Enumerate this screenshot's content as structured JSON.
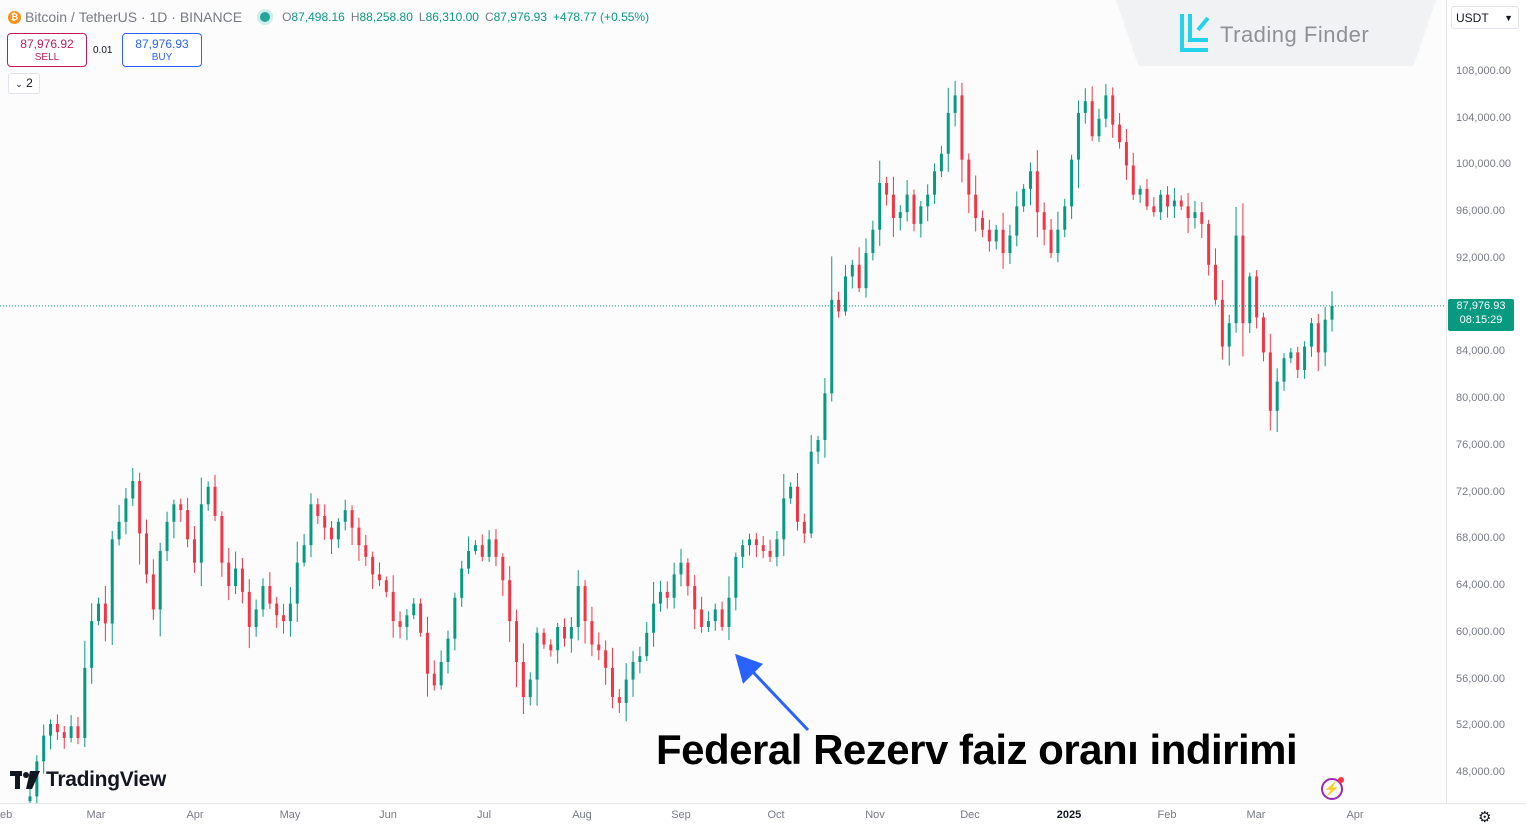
{
  "legend": {
    "symbol": "Bitcoin",
    "separator": "/",
    "quote": "TetherUS",
    "interval": "· 1D ·",
    "exchange": "BINANCE",
    "o_label": "O",
    "o_value": "87,498.16",
    "h_label": "H",
    "h_value": "88,258.80",
    "l_label": "L",
    "l_value": "86,310.00",
    "c_label": "C",
    "c_value": "87,976.93",
    "change": "+478.77 (+0.55%)"
  },
  "trade": {
    "sell_price": "87,976.92",
    "sell_label": "SELL",
    "spread": "0.01",
    "buy_price": "87,976.93",
    "buy_label": "BUY"
  },
  "indicators_toggle": "2",
  "watermark": "Trading Finder",
  "currency_select": "USDT",
  "branding": "TradingView",
  "annotation": "Federal Rezerv faiz oranı indirimi",
  "last_price": {
    "price": "87,976.93",
    "countdown": "08:15:29"
  },
  "colors": {
    "up": "#089981",
    "down": "#f23645",
    "arrow": "#2962ff",
    "last_price": "#089981"
  },
  "chart_data": {
    "type": "candlestick",
    "symbol": "BTCUSDT",
    "interval": "1D",
    "y_axis": {
      "ticks": [
        48000,
        52000,
        56000,
        60000,
        64000,
        68000,
        72000,
        76000,
        80000,
        84000,
        92000,
        96000,
        100000,
        104000,
        108000
      ],
      "tick_labels": [
        "48,000.00",
        "52,000.00",
        "56,000.00",
        "60,000.00",
        "64,000.00",
        "68,000.00",
        "72,000.00",
        "76,000.00",
        "80,000.00",
        "84,000.00",
        "92,000.00",
        "96,000.00",
        "100,000.00",
        "104,000.00",
        "108,000.00"
      ],
      "ylim": [
        45000,
        111000
      ]
    },
    "x_axis": {
      "tick_labels": [
        "eb",
        "Mar",
        "Apr",
        "May",
        "Jun",
        "Jul",
        "Aug",
        "Sep",
        "Oct",
        "Nov",
        "Dec",
        "2025",
        "Feb",
        "Mar",
        "Apr"
      ],
      "bold_labels": [
        "2025"
      ]
    },
    "last_close": 87976.93,
    "annotation_point": {
      "date": "Sep",
      "value": 58200
    },
    "series": [
      {
        "date": "Feb",
        "close": 46000
      },
      {
        "date": "Feb",
        "close": 49000
      },
      {
        "date": "Feb",
        "close": 51200
      },
      {
        "date": "Feb",
        "close": 52200
      },
      {
        "date": "Feb",
        "close": 51500
      },
      {
        "date": "Feb",
        "close": 51000
      },
      {
        "date": "Feb",
        "close": 52000
      },
      {
        "date": "Feb",
        "close": 51000
      },
      {
        "date": "Mar",
        "close": 57000
      },
      {
        "date": "Mar",
        "close": 61000
      },
      {
        "date": "Mar",
        "close": 62500
      },
      {
        "date": "Mar",
        "close": 60800
      },
      {
        "date": "Mar",
        "close": 68000
      },
      {
        "date": "Mar",
        "close": 69500
      },
      {
        "date": "Mar",
        "close": 71500
      },
      {
        "date": "Mar",
        "close": 73000
      },
      {
        "date": "Mar",
        "close": 68500
      },
      {
        "date": "Mar",
        "close": 65000
      },
      {
        "date": "Mar",
        "close": 62000
      },
      {
        "date": "Mar",
        "close": 67000
      },
      {
        "date": "Apr",
        "close": 69500
      },
      {
        "date": "Apr",
        "close": 71000
      },
      {
        "date": "Apr",
        "close": 70500
      },
      {
        "date": "Apr",
        "close": 68000
      },
      {
        "date": "Apr",
        "close": 66000
      },
      {
        "date": "Apr",
        "close": 71000
      },
      {
        "date": "Apr",
        "close": 72500
      },
      {
        "date": "Apr",
        "close": 70000
      },
      {
        "date": "Apr",
        "close": 66000
      },
      {
        "date": "Apr",
        "close": 64000
      },
      {
        "date": "Apr",
        "close": 65500
      },
      {
        "date": "Apr",
        "close": 63500
      },
      {
        "date": "May",
        "close": 60500
      },
      {
        "date": "May",
        "close": 62000
      },
      {
        "date": "May",
        "close": 64000
      },
      {
        "date": "May",
        "close": 62500
      },
      {
        "date": "May",
        "close": 61500
      },
      {
        "date": "May",
        "close": 61000
      },
      {
        "date": "May",
        "close": 62500
      },
      {
        "date": "May",
        "close": 66000
      },
      {
        "date": "May",
        "close": 67500
      },
      {
        "date": "May",
        "close": 71000
      },
      {
        "date": "May",
        "close": 70000
      },
      {
        "date": "May",
        "close": 69000
      },
      {
        "date": "Jun",
        "close": 68000
      },
      {
        "date": "Jun",
        "close": 69500
      },
      {
        "date": "Jun",
        "close": 70500
      },
      {
        "date": "Jun",
        "close": 69000
      },
      {
        "date": "Jun",
        "close": 67500
      },
      {
        "date": "Jun",
        "close": 66500
      },
      {
        "date": "Jun",
        "close": 65000
      },
      {
        "date": "Jun",
        "close": 64500
      },
      {
        "date": "Jun",
        "close": 63500
      },
      {
        "date": "Jun",
        "close": 61000
      },
      {
        "date": "Jun",
        "close": 60500
      },
      {
        "date": "Jun",
        "close": 61500
      },
      {
        "date": "Jul",
        "close": 62500
      },
      {
        "date": "Jul",
        "close": 60000
      },
      {
        "date": "Jul",
        "close": 56500
      },
      {
        "date": "Jul",
        "close": 55500
      },
      {
        "date": "Jul",
        "close": 57500
      },
      {
        "date": "Jul",
        "close": 59500
      },
      {
        "date": "Jul",
        "close": 63000
      },
      {
        "date": "Jul",
        "close": 65500
      },
      {
        "date": "Jul",
        "close": 67000
      },
      {
        "date": "Jul",
        "close": 67500
      },
      {
        "date": "Jul",
        "close": 66500
      },
      {
        "date": "Jul",
        "close": 68000
      },
      {
        "date": "Aug",
        "close": 66500
      },
      {
        "date": "Aug",
        "close": 64500
      },
      {
        "date": "Aug",
        "close": 61000
      },
      {
        "date": "Aug",
        "close": 57500
      },
      {
        "date": "Aug",
        "close": 54500
      },
      {
        "date": "Aug",
        "close": 56000
      },
      {
        "date": "Aug",
        "close": 60000
      },
      {
        "date": "Aug",
        "close": 59000
      },
      {
        "date": "Aug",
        "close": 58500
      },
      {
        "date": "Aug",
        "close": 60500
      },
      {
        "date": "Aug",
        "close": 59500
      },
      {
        "date": "Aug",
        "close": 60500
      },
      {
        "date": "Aug",
        "close": 64000
      },
      {
        "date": "Aug",
        "close": 61000
      },
      {
        "date": "Aug",
        "close": 59000
      },
      {
        "date": "Sep",
        "close": 58500
      },
      {
        "date": "Sep",
        "close": 57000
      },
      {
        "date": "Sep",
        "close": 54500
      },
      {
        "date": "Sep",
        "close": 54000
      },
      {
        "date": "Sep",
        "close": 56000
      },
      {
        "date": "Sep",
        "close": 57500
      },
      {
        "date": "Sep",
        "close": 58000
      },
      {
        "date": "Sep",
        "close": 60000
      },
      {
        "date": "Sep",
        "close": 62500
      },
      {
        "date": "Sep",
        "close": 63500
      },
      {
        "date": "Sep",
        "close": 63000
      },
      {
        "date": "Sep",
        "close": 65000
      },
      {
        "date": "Sep",
        "close": 66000
      },
      {
        "date": "Oct",
        "close": 64000
      },
      {
        "date": "Oct",
        "close": 62000
      },
      {
        "date": "Oct",
        "close": 60500
      },
      {
        "date": "Oct",
        "close": 61000
      },
      {
        "date": "Oct",
        "close": 62000
      },
      {
        "date": "Oct",
        "close": 60500
      },
      {
        "date": "Oct",
        "close": 63000
      },
      {
        "date": "Oct",
        "close": 66500
      },
      {
        "date": "Oct",
        "close": 67500
      },
      {
        "date": "Oct",
        "close": 68000
      },
      {
        "date": "Oct",
        "close": 67500
      },
      {
        "date": "Oct",
        "close": 67000
      },
      {
        "date": "Oct",
        "close": 66500
      },
      {
        "date": "Oct",
        "close": 68000
      },
      {
        "date": "Oct",
        "close": 71500
      },
      {
        "date": "Oct",
        "close": 72500
      },
      {
        "date": "Nov",
        "close": 69500
      },
      {
        "date": "Nov",
        "close": 68500
      },
      {
        "date": "Nov",
        "close": 75500
      },
      {
        "date": "Nov",
        "close": 76500
      },
      {
        "date": "Nov",
        "close": 80500
      },
      {
        "date": "Nov",
        "close": 88500
      },
      {
        "date": "Nov",
        "close": 87500
      },
      {
        "date": "Nov",
        "close": 90500
      },
      {
        "date": "Nov",
        "close": 91500
      },
      {
        "date": "Nov",
        "close": 89500
      },
      {
        "date": "Nov",
        "close": 92500
      },
      {
        "date": "Nov",
        "close": 94500
      },
      {
        "date": "Nov",
        "close": 98500
      },
      {
        "date": "Nov",
        "close": 97500
      },
      {
        "date": "Dec",
        "close": 95500
      },
      {
        "date": "Dec",
        "close": 96000
      },
      {
        "date": "Dec",
        "close": 97500
      },
      {
        "date": "Dec",
        "close": 95000
      },
      {
        "date": "Dec",
        "close": 96500
      },
      {
        "date": "Dec",
        "close": 97500
      },
      {
        "date": "Dec",
        "close": 99500
      },
      {
        "date": "Dec",
        "close": 101000
      },
      {
        "date": "Dec",
        "close": 104500
      },
      {
        "date": "Dec",
        "close": 106000
      },
      {
        "date": "Dec",
        "close": 100500
      },
      {
        "date": "Dec",
        "close": 97500
      },
      {
        "date": "Dec",
        "close": 95500
      },
      {
        "date": "Dec",
        "close": 94500
      },
      {
        "date": "Dec",
        "close": 93500
      },
      {
        "date": "Dec",
        "close": 94500
      },
      {
        "date": "Dec",
        "close": 92500
      },
      {
        "date": "Dec",
        "close": 94000
      },
      {
        "date": "2025",
        "close": 96500
      },
      {
        "date": "2025",
        "close": 98000
      },
      {
        "date": "2025",
        "close": 99500
      },
      {
        "date": "2025",
        "close": 96000
      },
      {
        "date": "2025",
        "close": 94500
      },
      {
        "date": "2025",
        "close": 92500
      },
      {
        "date": "2025",
        "close": 94500
      },
      {
        "date": "2025",
        "close": 96500
      },
      {
        "date": "2025",
        "close": 100500
      },
      {
        "date": "2025",
        "close": 104500
      },
      {
        "date": "2025",
        "close": 105500
      },
      {
        "date": "2025",
        "close": 102500
      },
      {
        "date": "2025",
        "close": 104000
      },
      {
        "date": "2025",
        "close": 106000
      },
      {
        "date": "2025",
        "close": 103500
      },
      {
        "date": "2025",
        "close": 102000
      },
      {
        "date": "Feb",
        "close": 100000
      },
      {
        "date": "Feb",
        "close": 97500
      },
      {
        "date": "Feb",
        "close": 98000
      },
      {
        "date": "Feb",
        "close": 96500
      },
      {
        "date": "Feb",
        "close": 96000
      },
      {
        "date": "Feb",
        "close": 97500
      },
      {
        "date": "Feb",
        "close": 96500
      },
      {
        "date": "Feb",
        "close": 97000
      },
      {
        "date": "Feb",
        "close": 96500
      },
      {
        "date": "Feb",
        "close": 95500
      },
      {
        "date": "Feb",
        "close": 96000
      },
      {
        "date": "Feb",
        "close": 95000
      },
      {
        "date": "Feb",
        "close": 91500
      },
      {
        "date": "Feb",
        "close": 88500
      },
      {
        "date": "Feb",
        "close": 84500
      },
      {
        "date": "Mar",
        "close": 86500
      },
      {
        "date": "Mar",
        "close": 94000
      },
      {
        "date": "Mar",
        "close": 86500
      },
      {
        "date": "Mar",
        "close": 90500
      },
      {
        "date": "Mar",
        "close": 87000
      },
      {
        "date": "Mar",
        "close": 84000
      },
      {
        "date": "Mar",
        "close": 79000
      },
      {
        "date": "Mar",
        "close": 81500
      },
      {
        "date": "Mar",
        "close": 83500
      },
      {
        "date": "Mar",
        "close": 84000
      },
      {
        "date": "Mar",
        "close": 82500
      },
      {
        "date": "Mar",
        "close": 84500
      },
      {
        "date": "Mar",
        "close": 86500
      },
      {
        "date": "Mar",
        "close": 84000
      },
      {
        "date": "Mar",
        "close": 86800
      },
      {
        "date": "Mar",
        "close": 87977
      }
    ]
  }
}
